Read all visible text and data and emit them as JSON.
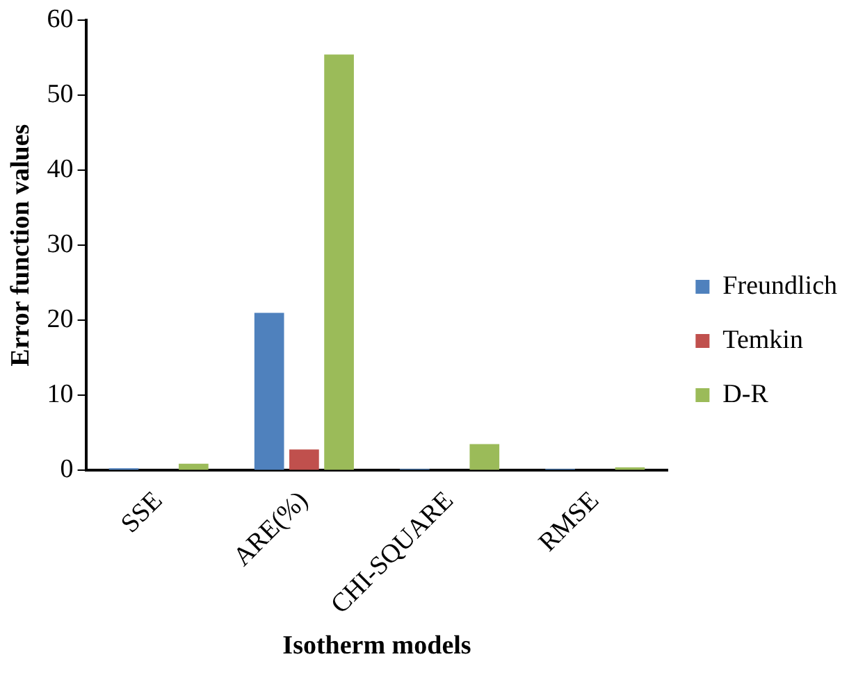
{
  "chart_data": {
    "type": "bar",
    "xlabel": "Isotherm models",
    "ylabel": "Error function values",
    "categories": [
      "SSE",
      "ARE(%)",
      "CHI-SQUARE",
      "RMSE"
    ],
    "series": [
      {
        "name": "Freundlich",
        "color": "#4f81bd",
        "values": [
          0.3,
          21,
          0.2,
          0.2
        ]
      },
      {
        "name": "Temkin",
        "color": "#c0504d",
        "values": [
          0,
          2.8,
          0,
          0
        ]
      },
      {
        "name": "D-R",
        "color": "#9bbb59",
        "values": [
          0.9,
          55.4,
          3.5,
          0.4
        ]
      }
    ],
    "ylim": [
      0,
      60
    ],
    "yticks": [
      0,
      10,
      20,
      30,
      40,
      50,
      60
    ],
    "grid": false,
    "legend": "right"
  }
}
